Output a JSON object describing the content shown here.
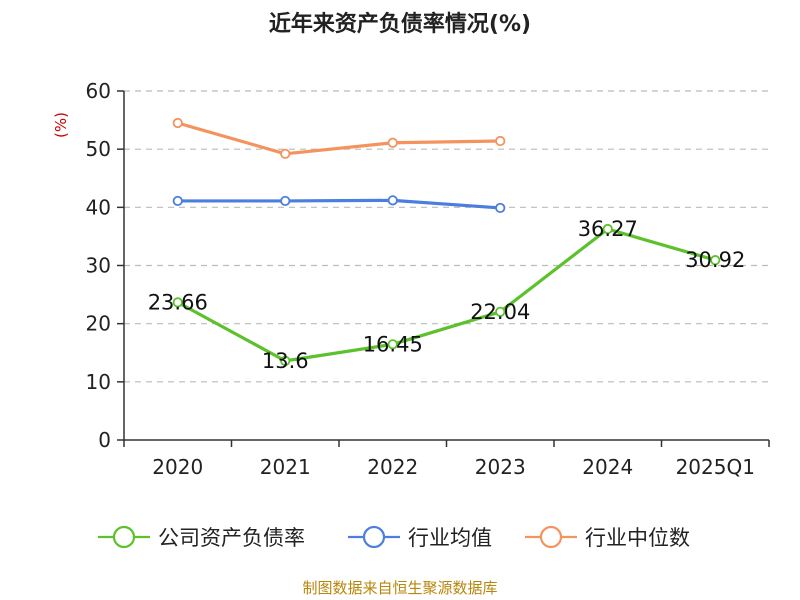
{
  "chart_data": {
    "type": "line",
    "title": "近年来资产负债率情况(%)",
    "ylabel": "(%)",
    "xlabel": "",
    "categories": [
      "2020",
      "2021",
      "2022",
      "2023",
      "2024",
      "2025Q1"
    ],
    "ylim": [
      0,
      60
    ],
    "yticks": [
      "0",
      "10",
      "20",
      "30",
      "40",
      "50",
      "60"
    ],
    "grid": true,
    "legend_position": "bottom",
    "series": [
      {
        "name": "公司资产负债率",
        "color": "#5cc12c",
        "values": [
          23.66,
          13.6,
          16.45,
          22.04,
          36.27,
          30.92
        ],
        "labels": [
          "23.66",
          "13.6",
          "16.45",
          "22.04",
          "36.27",
          "30.92"
        ]
      },
      {
        "name": "行业均值",
        "color": "#4c7ee0",
        "values": [
          41.1,
          41.1,
          41.2,
          39.9,
          null,
          null
        ],
        "labels": []
      },
      {
        "name": "行业中位数",
        "color": "#f4935e",
        "values": [
          54.5,
          49.2,
          51.1,
          51.4,
          null,
          null
        ],
        "labels": []
      }
    ],
    "source": "制图数据来自恒生聚源数据库",
    "colors": {
      "axis": "#333333",
      "grid": "#bbbbbb",
      "ylabel": "#cc0000",
      "source": "#b8860b"
    }
  }
}
